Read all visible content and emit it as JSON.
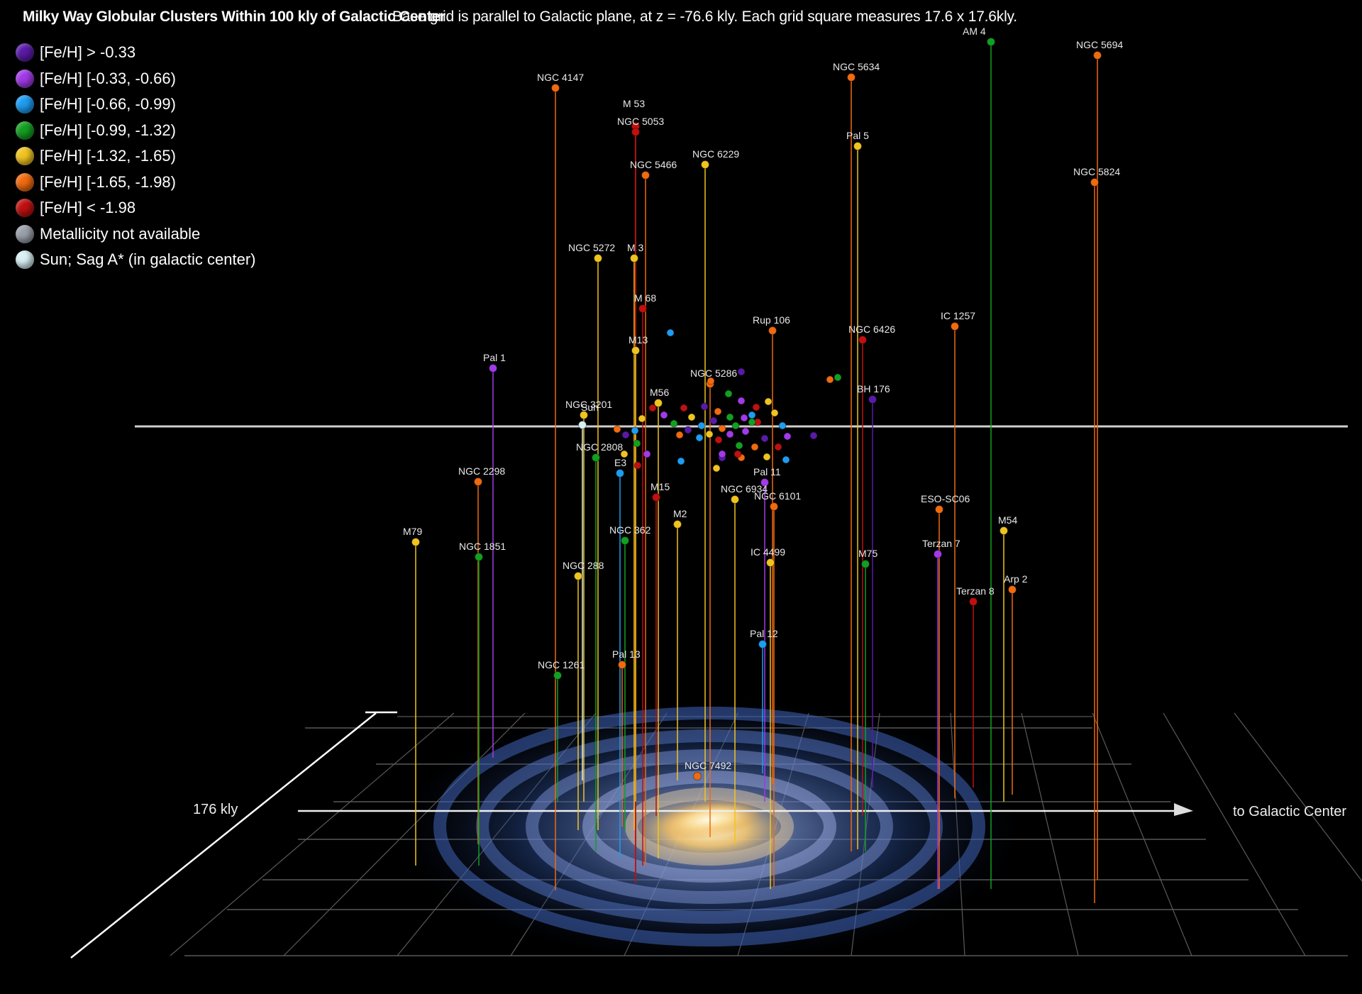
{
  "title": "Milky Way Globular Clusters Within 100 kly of Galactic Center",
  "subtitle": "Base grid is parallel to Galactic plane, at z = -76.6 kly. Each grid square measures 17.6 x 17.6kly.",
  "legend": [
    {
      "label": "[Fe/H] > -0.33",
      "color": "#5a1aa8"
    },
    {
      "label": "[Fe/H] [-0.33, -0.66)",
      "color": "#a23ae8"
    },
    {
      "label": "[Fe/H] [-0.66, -0.99)",
      "color": "#1e9cf0"
    },
    {
      "label": "[Fe/H] [-0.99, -1.32)",
      "color": "#12a020"
    },
    {
      "label": "[Fe/H] [-1.32, -1.65)",
      "color": "#f0c420"
    },
    {
      "label": "[Fe/H] [-1.65, -1.98)",
      "color": "#f06a10"
    },
    {
      "label": "[Fe/H] < -1.98",
      "color": "#c01010"
    },
    {
      "label": "Metallicity not available",
      "color": "#9aa0aa"
    },
    {
      "label": "Sun; Sag A* (in galactic center)",
      "color": "#d8f0f4"
    }
  ],
  "axis": {
    "scale_label": "176 kly",
    "direction_label": "to Galactic Center"
  },
  "chart_data": {
    "type": "scatter",
    "title": "Milky Way Globular Clusters Within 100 kly of Galactic Center",
    "projection": "3d-perspective",
    "grid": true,
    "legend_position": "top-left",
    "labeled_clusters": [
      {
        "name": "AM 4",
        "class": 3
      },
      {
        "name": "NGC 5694",
        "class": 5
      },
      {
        "name": "NGC 5634",
        "class": 5
      },
      {
        "name": "NGC 4147",
        "class": 5
      },
      {
        "name": "M 53",
        "class": 6
      },
      {
        "name": "NGC 5053",
        "class": 6
      },
      {
        "name": "Pal 5",
        "class": 4
      },
      {
        "name": "NGC 6229",
        "class": 4
      },
      {
        "name": "NGC 5466",
        "class": 5
      },
      {
        "name": "NGC 5824",
        "class": 5
      },
      {
        "name": "NGC 5272",
        "class": 4
      },
      {
        "name": "M 3",
        "class": 4
      },
      {
        "name": "M 68",
        "class": 6
      },
      {
        "name": "Rup 106",
        "class": 5
      },
      {
        "name": "IC 1257",
        "class": 5
      },
      {
        "name": "NGC 6426",
        "class": 6
      },
      {
        "name": "M13",
        "class": 4
      },
      {
        "name": "Pal 1",
        "class": 1
      },
      {
        "name": "NGC 5286",
        "class": 5
      },
      {
        "name": "BH 176",
        "class": 0
      },
      {
        "name": "M56",
        "class": 4
      },
      {
        "name": "NGC 3201",
        "class": 4
      },
      {
        "name": "Sun",
        "class": 8
      },
      {
        "name": "NGC 2808",
        "class": 3
      },
      {
        "name": "E3",
        "class": 2
      },
      {
        "name": "NGC 2298",
        "class": 5
      },
      {
        "name": "Pal 11",
        "class": 1
      },
      {
        "name": "M15",
        "class": 6
      },
      {
        "name": "NGC 6934",
        "class": 4
      },
      {
        "name": "NGC 6101",
        "class": 5
      },
      {
        "name": "ESO-SC06",
        "class": 5
      },
      {
        "name": "M2",
        "class": 4
      },
      {
        "name": "M54",
        "class": 4
      },
      {
        "name": "M79",
        "class": 4
      },
      {
        "name": "NGC 362",
        "class": 3
      },
      {
        "name": "NGC 1851",
        "class": 3
      },
      {
        "name": "IC 4499",
        "class": 4
      },
      {
        "name": "Terzan 7",
        "class": 1
      },
      {
        "name": "M75",
        "class": 3
      },
      {
        "name": "NGC 288",
        "class": 4
      },
      {
        "name": "Arp 2",
        "class": 5
      },
      {
        "name": "Terzan 8",
        "class": 6
      },
      {
        "name": "Pal 12",
        "class": 2
      },
      {
        "name": "Pal 13",
        "class": 5
      },
      {
        "name": "NGC 1261",
        "class": 3
      },
      {
        "name": "NGC 7492",
        "class": 5
      }
    ]
  }
}
